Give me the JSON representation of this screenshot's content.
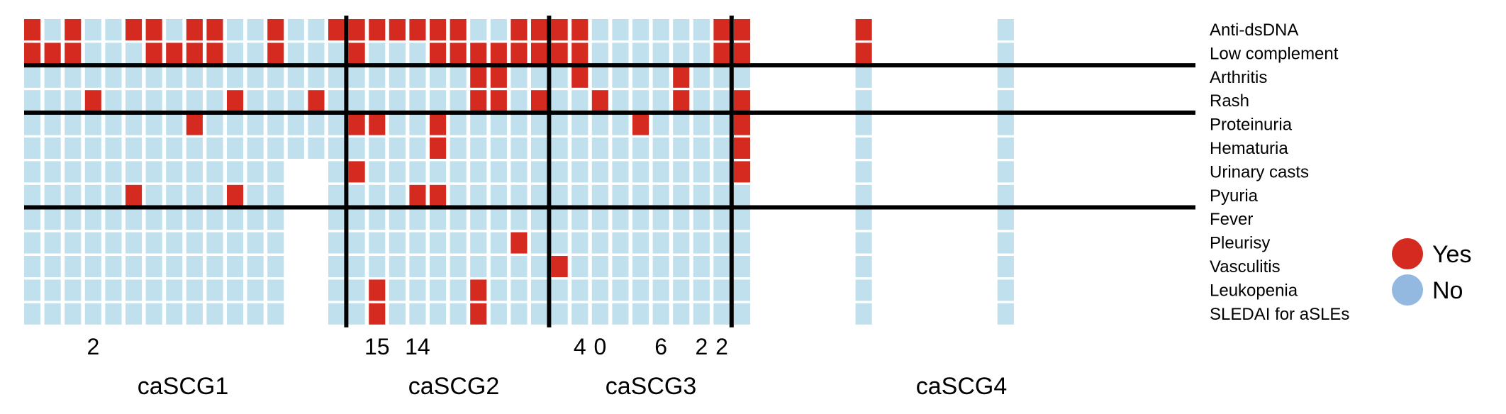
{
  "colors": {
    "yes": "#d42a20",
    "no": "#bfe0ec",
    "legend_no": "#93b9e0",
    "line": "#000000"
  },
  "chart_data": {
    "type": "heatmap",
    "title": "",
    "rows": [
      "Anti-dsDNA",
      "Low complement",
      "Arthritis",
      "Rash",
      "Proteinuria",
      "Hematuria",
      "Urinary casts",
      "Pyuria",
      "Fever",
      "Pleurisy",
      "Vasculitis",
      "Leukopenia",
      "SLEDAI for aSLEs"
    ],
    "legend": [
      {
        "label": "Yes",
        "value": 1
      },
      {
        "label": "No",
        "value": 0
      }
    ],
    "legend_position": "right",
    "clusters": [
      {
        "label": "caSCG1",
        "first_col": 0,
        "last_col": 15
      },
      {
        "label": "caSCG2",
        "first_col": 16,
        "last_col": 25
      },
      {
        "label": "caSCG3",
        "first_col": 26,
        "last_col": 34
      },
      {
        "label": "caSCG4",
        "first_col": 35,
        "last_col": 51
      }
    ],
    "group_dividers_after_rows": [
      1,
      3,
      7
    ],
    "cluster_dividers_after_cols": [
      15,
      25,
      34
    ],
    "column_numbers": [
      {
        "col": 3,
        "text": "2"
      },
      {
        "col": 17,
        "text": "15"
      },
      {
        "col": 19,
        "text": "14"
      },
      {
        "col": 27,
        "text": "4"
      },
      {
        "col": 28,
        "text": "0"
      },
      {
        "col": 31,
        "text": "6"
      },
      {
        "col": 33,
        "text": "2"
      },
      {
        "col": 34,
        "text": "2"
      }
    ],
    "matrix": [
      [
        1,
        0,
        1,
        0,
        0,
        1,
        1,
        0,
        1,
        1,
        0,
        0,
        1,
        0,
        0,
        1,
        1,
        1,
        1,
        1,
        1,
        1,
        0,
        0,
        1,
        1,
        1,
        1,
        0,
        0,
        0,
        0,
        0,
        0,
        1,
        1,
        1,
        1,
        1,
        0,
        0,
        1,
        0,
        0,
        0,
        0,
        0,
        0,
        0,
        0,
        1,
        0
      ],
      [
        1,
        1,
        1,
        0,
        0,
        0,
        1,
        1,
        1,
        1,
        0,
        0,
        1,
        0,
        0,
        0,
        1,
        0,
        0,
        0,
        1,
        1,
        1,
        1,
        1,
        1,
        1,
        1,
        0,
        0,
        0,
        0,
        0,
        0,
        1,
        1,
        0,
        0,
        0,
        0,
        0,
        1,
        0,
        0,
        0,
        0,
        0,
        0,
        0,
        0,
        1,
        0
      ],
      [
        0,
        0,
        0,
        0,
        0,
        0,
        0,
        0,
        0,
        0,
        0,
        0,
        0,
        0,
        0,
        0,
        0,
        0,
        0,
        0,
        0,
        0,
        1,
        1,
        0,
        0,
        0,
        1,
        0,
        0,
        0,
        0,
        1,
        0,
        0,
        0,
        0,
        0,
        0,
        0,
        0,
        0,
        0,
        0,
        0,
        0,
        0,
        0,
        0,
        0,
        0,
        0
      ],
      [
        0,
        0,
        0,
        1,
        0,
        0,
        0,
        0,
        0,
        0,
        1,
        0,
        0,
        0,
        1,
        0,
        0,
        0,
        0,
        0,
        0,
        0,
        1,
        1,
        0,
        1,
        0,
        0,
        1,
        0,
        0,
        0,
        1,
        0,
        0,
        1,
        0,
        0,
        0,
        0,
        0,
        0,
        0,
        0,
        0,
        0,
        0,
        0,
        0,
        0,
        0,
        0
      ],
      [
        0,
        0,
        0,
        0,
        0,
        0,
        0,
        0,
        1,
        0,
        0,
        0,
        0,
        0,
        0,
        0,
        1,
        1,
        0,
        0,
        1,
        0,
        0,
        0,
        0,
        0,
        0,
        0,
        0,
        0,
        1,
        0,
        0,
        0,
        0,
        1,
        0,
        1,
        0,
        0,
        0,
        0,
        0,
        0,
        0,
        0,
        0,
        0,
        0,
        0,
        0,
        0
      ],
      [
        0,
        0,
        0,
        0,
        0,
        0,
        0,
        0,
        0,
        0,
        0,
        0,
        0,
        0,
        0,
        0,
        0,
        0,
        0,
        0,
        1,
        0,
        0,
        0,
        0,
        0,
        0,
        0,
        0,
        0,
        0,
        0,
        0,
        0,
        0,
        1,
        0,
        0,
        0,
        0,
        0,
        0,
        0,
        0,
        0,
        0,
        0,
        0,
        0,
        0,
        0,
        0
      ],
      [
        0,
        0,
        0,
        0,
        0,
        0,
        0,
        0,
        0,
        0,
        0,
        0,
        0,
        0,
        0,
        0,
        1,
        0,
        0,
        0,
        0,
        0,
        0,
        0,
        0,
        0,
        0,
        0,
        0,
        0,
        0,
        0,
        0,
        0,
        0,
        1,
        0,
        0,
        0,
        0,
        0,
        0,
        0,
        0,
        0,
        0,
        0,
        0,
        0,
        0,
        0,
        0
      ],
      [
        0,
        0,
        0,
        0,
        0,
        1,
        0,
        0,
        0,
        0,
        1,
        0,
        0,
        0,
        0,
        0,
        0,
        0,
        0,
        1,
        1,
        0,
        0,
        0,
        0,
        0,
        0,
        0,
        0,
        0,
        0,
        0,
        0,
        0,
        0,
        0,
        0,
        0,
        0,
        0,
        0,
        0,
        0,
        0,
        0,
        0,
        0,
        0,
        0,
        0,
        0,
        0
      ],
      [
        0,
        0,
        0,
        0,
        0,
        0,
        0,
        0,
        0,
        0,
        0,
        0,
        0,
        0,
        0,
        0,
        0,
        0,
        0,
        0,
        0,
        0,
        0,
        0,
        0,
        0,
        0,
        0,
        0,
        0,
        0,
        0,
        0,
        0,
        0,
        0,
        0,
        0,
        0,
        0,
        0,
        0,
        0,
        0,
        0,
        0,
        0,
        0,
        0,
        0,
        0,
        0
      ],
      [
        0,
        0,
        0,
        0,
        0,
        0,
        0,
        0,
        0,
        0,
        0,
        0,
        0,
        0,
        0,
        0,
        0,
        0,
        0,
        0,
        0,
        0,
        0,
        0,
        1,
        0,
        0,
        0,
        0,
        0,
        0,
        0,
        0,
        0,
        0,
        0,
        0,
        0,
        0,
        0,
        0,
        0,
        0,
        0,
        0,
        0,
        0,
        0,
        0,
        0,
        0,
        0
      ],
      [
        0,
        0,
        0,
        0,
        0,
        0,
        0,
        0,
        0,
        0,
        0,
        0,
        0,
        0,
        0,
        0,
        0,
        0,
        0,
        0,
        0,
        0,
        0,
        0,
        0,
        0,
        1,
        0,
        0,
        0,
        0,
        0,
        0,
        0,
        0,
        0,
        0,
        0,
        0,
        0,
        0,
        0,
        0,
        0,
        0,
        0,
        0,
        0,
        0,
        0,
        0,
        0
      ],
      [
        0,
        0,
        0,
        0,
        0,
        0,
        0,
        0,
        0,
        0,
        0,
        0,
        0,
        0,
        0,
        0,
        0,
        1,
        0,
        0,
        0,
        0,
        1,
        0,
        0,
        0,
        0,
        0,
        0,
        0,
        0,
        0,
        0,
        0,
        0,
        0,
        0,
        0,
        0,
        0,
        0,
        0,
        0,
        0,
        0,
        0,
        0,
        0,
        0,
        0,
        0,
        0
      ],
      [
        0,
        0,
        0,
        0,
        0,
        0,
        0,
        0,
        0,
        0,
        0,
        0,
        0,
        0,
        0,
        0,
        0,
        1,
        0,
        0,
        0,
        0,
        1,
        0,
        0,
        0,
        0,
        0,
        0,
        0,
        0,
        0,
        0,
        0,
        0,
        0,
        0,
        0,
        0,
        0,
        0,
        0,
        0,
        0,
        0,
        0,
        0,
        0,
        0,
        0,
        0,
        0
      ]
    ],
    "blank_cells": [
      [
        6,
        13
      ],
      [
        6,
        14
      ],
      [
        7,
        13
      ],
      [
        7,
        14
      ],
      [
        8,
        13
      ],
      [
        8,
        14
      ],
      [
        9,
        13
      ],
      [
        9,
        14
      ],
      [
        10,
        13
      ],
      [
        10,
        14
      ],
      [
        11,
        13
      ],
      [
        11,
        14
      ],
      [
        12,
        13
      ],
      [
        12,
        14
      ],
      [
        0,
        36
      ],
      [
        0,
        37
      ],
      [
        0,
        38
      ],
      [
        0,
        39
      ],
      [
        0,
        40
      ],
      [
        0,
        42
      ],
      [
        0,
        43
      ],
      [
        0,
        44
      ],
      [
        0,
        45
      ],
      [
        0,
        46
      ],
      [
        0,
        47
      ],
      [
        0,
        49
      ],
      [
        0,
        50
      ],
      [
        0,
        51
      ],
      [
        1,
        36
      ],
      [
        1,
        37
      ],
      [
        1,
        38
      ],
      [
        1,
        39
      ],
      [
        1,
        40
      ],
      [
        1,
        42
      ],
      [
        1,
        43
      ],
      [
        1,
        44
      ],
      [
        1,
        45
      ],
      [
        1,
        46
      ],
      [
        1,
        47
      ],
      [
        1,
        49
      ],
      [
        1,
        50
      ],
      [
        1,
        51
      ],
      [
        2,
        36
      ],
      [
        2,
        37
      ],
      [
        2,
        38
      ],
      [
        2,
        39
      ],
      [
        2,
        40
      ],
      [
        2,
        42
      ],
      [
        2,
        43
      ],
      [
        2,
        44
      ],
      [
        2,
        45
      ],
      [
        2,
        46
      ],
      [
        2,
        47
      ],
      [
        2,
        49
      ],
      [
        2,
        50
      ],
      [
        2,
        51
      ],
      [
        3,
        36
      ],
      [
        3,
        37
      ],
      [
        3,
        38
      ],
      [
        3,
        39
      ],
      [
        3,
        40
      ],
      [
        3,
        42
      ],
      [
        3,
        43
      ],
      [
        3,
        44
      ],
      [
        3,
        45
      ],
      [
        3,
        46
      ],
      [
        3,
        47
      ],
      [
        3,
        49
      ],
      [
        3,
        50
      ],
      [
        3,
        51
      ],
      [
        4,
        36
      ],
      [
        4,
        37
      ],
      [
        4,
        38
      ],
      [
        4,
        39
      ],
      [
        4,
        40
      ],
      [
        4,
        42
      ],
      [
        4,
        43
      ],
      [
        4,
        44
      ],
      [
        4,
        45
      ],
      [
        4,
        46
      ],
      [
        4,
        47
      ],
      [
        4,
        49
      ],
      [
        4,
        50
      ],
      [
        4,
        51
      ],
      [
        5,
        36
      ],
      [
        5,
        37
      ],
      [
        5,
        38
      ],
      [
        5,
        39
      ],
      [
        5,
        40
      ],
      [
        5,
        42
      ],
      [
        5,
        43
      ],
      [
        5,
        44
      ],
      [
        5,
        45
      ],
      [
        5,
        46
      ],
      [
        5,
        47
      ],
      [
        5,
        49
      ],
      [
        5,
        50
      ],
      [
        5,
        51
      ],
      [
        6,
        36
      ],
      [
        6,
        37
      ],
      [
        6,
        38
      ],
      [
        6,
        39
      ],
      [
        6,
        40
      ],
      [
        6,
        42
      ],
      [
        6,
        43
      ],
      [
        6,
        44
      ],
      [
        6,
        45
      ],
      [
        6,
        46
      ],
      [
        6,
        47
      ],
      [
        6,
        49
      ],
      [
        6,
        50
      ],
      [
        6,
        51
      ],
      [
        7,
        36
      ],
      [
        7,
        37
      ],
      [
        7,
        38
      ],
      [
        7,
        39
      ],
      [
        7,
        40
      ],
      [
        7,
        42
      ],
      [
        7,
        43
      ],
      [
        7,
        44
      ],
      [
        7,
        45
      ],
      [
        7,
        46
      ],
      [
        7,
        47
      ],
      [
        7,
        49
      ],
      [
        7,
        50
      ],
      [
        7,
        51
      ],
      [
        8,
        36
      ],
      [
        8,
        37
      ],
      [
        8,
        38
      ],
      [
        8,
        39
      ],
      [
        8,
        40
      ],
      [
        8,
        42
      ],
      [
        8,
        43
      ],
      [
        8,
        44
      ],
      [
        8,
        45
      ],
      [
        8,
        46
      ],
      [
        8,
        47
      ],
      [
        8,
        49
      ],
      [
        8,
        50
      ],
      [
        8,
        51
      ],
      [
        9,
        36
      ],
      [
        9,
        37
      ],
      [
        9,
        38
      ],
      [
        9,
        39
      ],
      [
        9,
        40
      ],
      [
        9,
        42
      ],
      [
        9,
        43
      ],
      [
        9,
        44
      ],
      [
        9,
        45
      ],
      [
        9,
        46
      ],
      [
        9,
        47
      ],
      [
        9,
        49
      ],
      [
        9,
        50
      ],
      [
        9,
        51
      ],
      [
        10,
        36
      ],
      [
        10,
        37
      ],
      [
        10,
        38
      ],
      [
        10,
        39
      ],
      [
        10,
        40
      ],
      [
        10,
        42
      ],
      [
        10,
        43
      ],
      [
        10,
        44
      ],
      [
        10,
        45
      ],
      [
        10,
        46
      ],
      [
        10,
        47
      ],
      [
        10,
        49
      ],
      [
        10,
        50
      ],
      [
        10,
        51
      ],
      [
        11,
        36
      ],
      [
        11,
        37
      ],
      [
        11,
        38
      ],
      [
        11,
        39
      ],
      [
        11,
        40
      ],
      [
        11,
        42
      ],
      [
        11,
        43
      ],
      [
        11,
        44
      ],
      [
        11,
        45
      ],
      [
        11,
        46
      ],
      [
        11,
        47
      ],
      [
        11,
        49
      ],
      [
        11,
        50
      ],
      [
        11,
        51
      ],
      [
        12,
        36
      ],
      [
        12,
        37
      ],
      [
        12,
        38
      ],
      [
        12,
        39
      ],
      [
        12,
        40
      ],
      [
        12,
        42
      ],
      [
        12,
        43
      ],
      [
        12,
        44
      ],
      [
        12,
        45
      ],
      [
        12,
        46
      ],
      [
        12,
        47
      ],
      [
        12,
        49
      ],
      [
        12,
        50
      ],
      [
        12,
        51
      ]
    ]
  }
}
